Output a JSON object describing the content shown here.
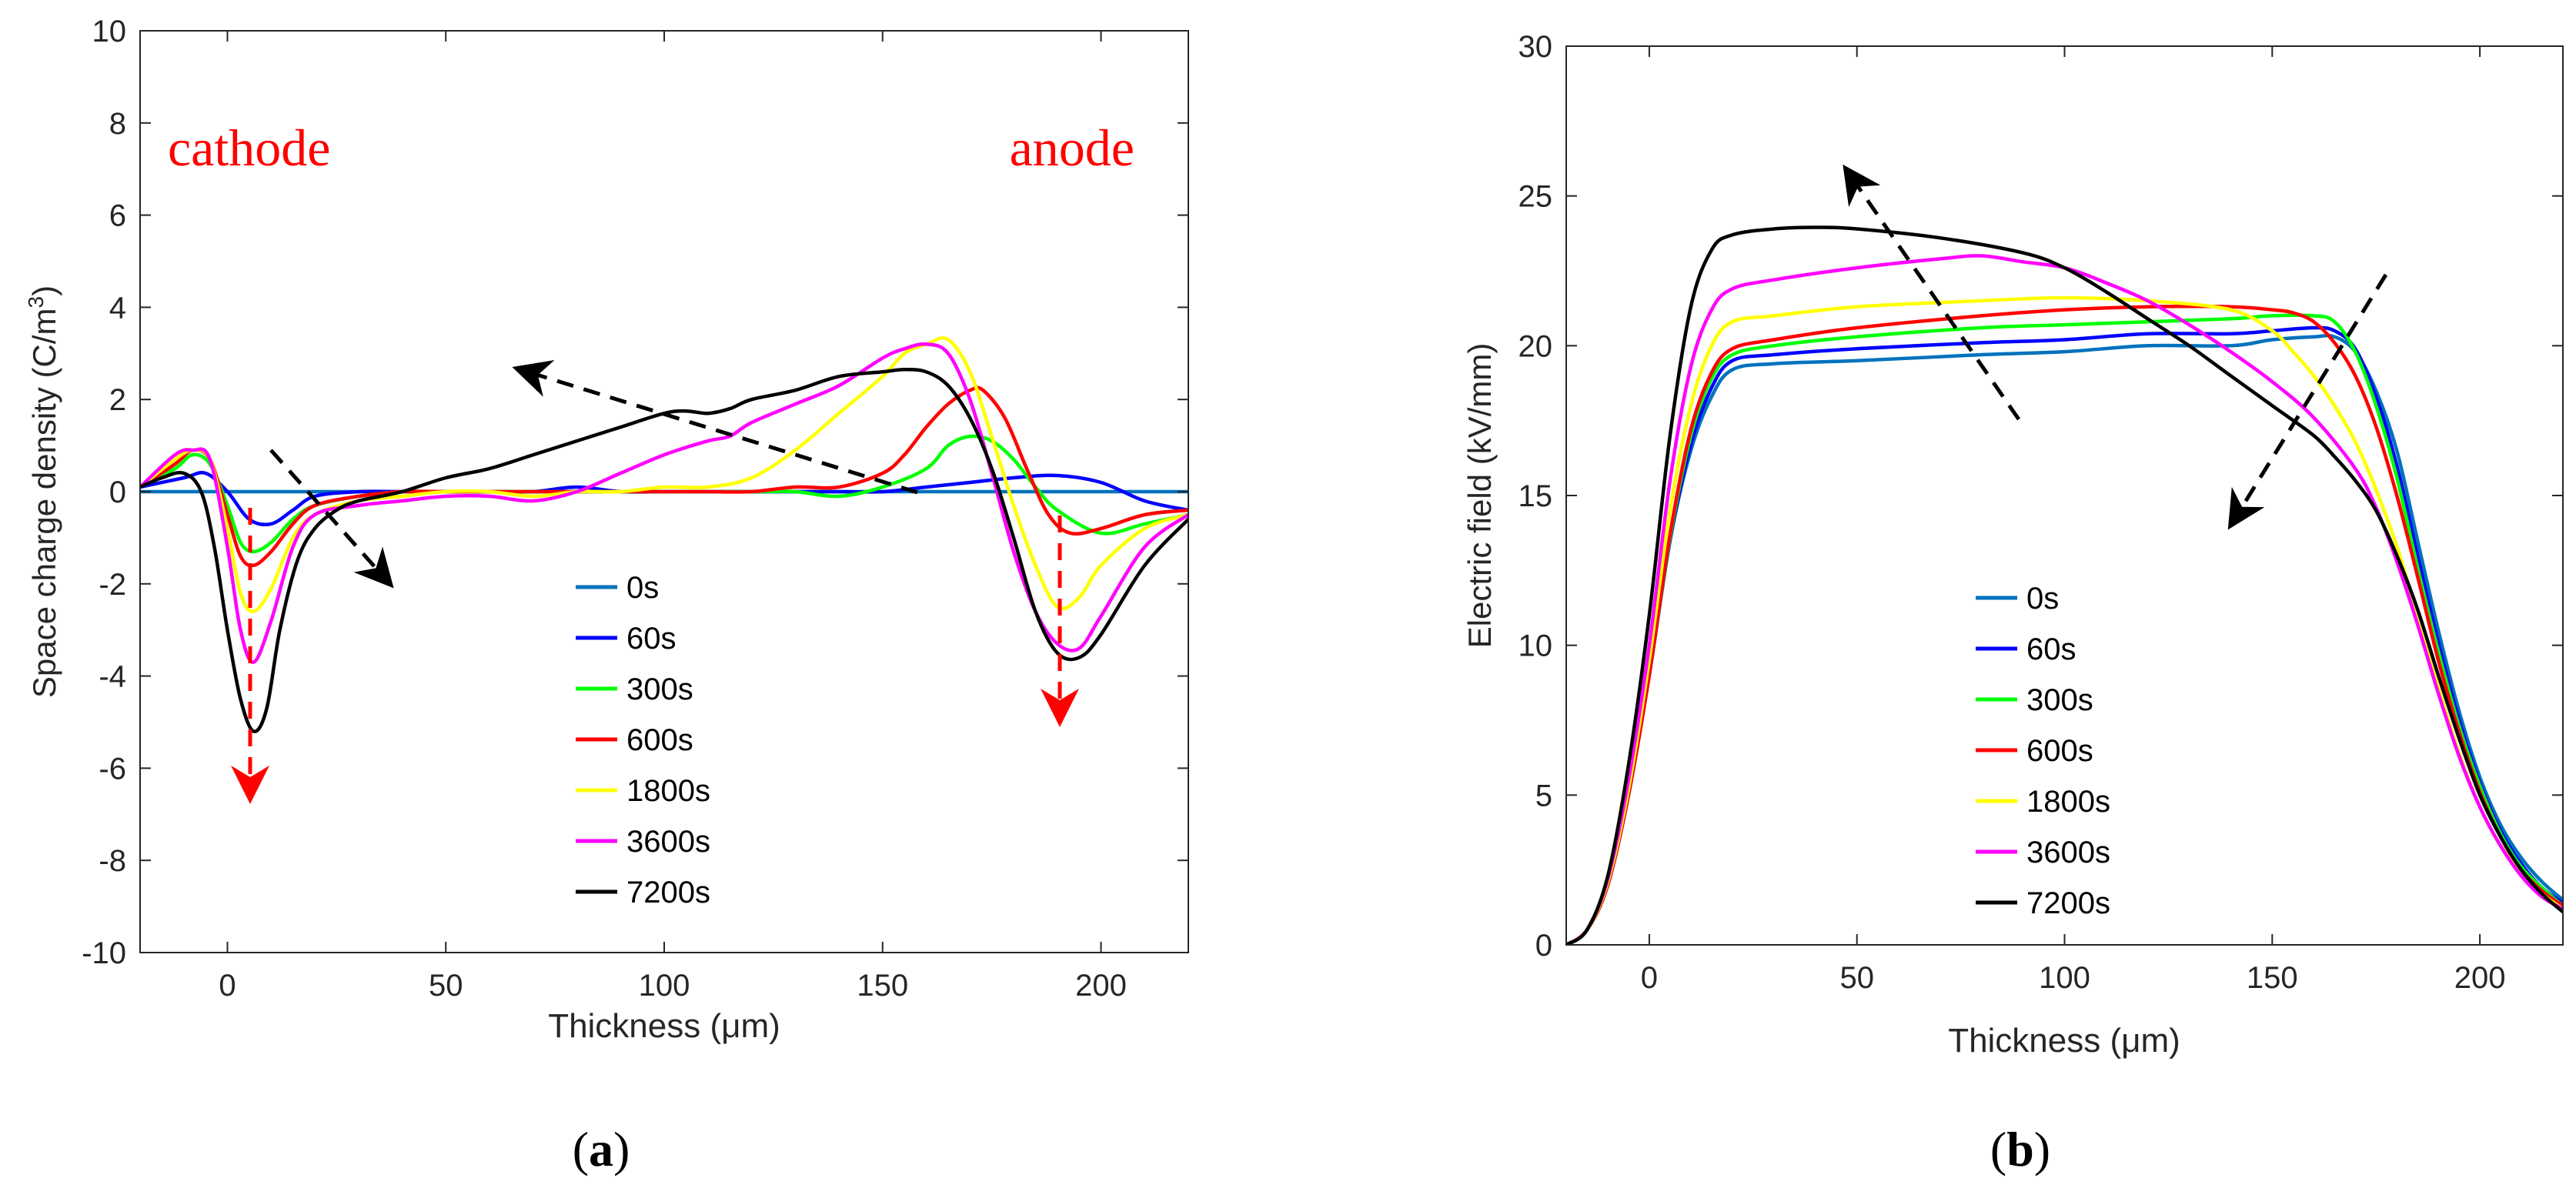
{
  "chart_data": [
    {
      "id": "a",
      "type": "line",
      "panel_label": "(a)",
      "panel_letter": "a",
      "title": "",
      "xlabel": "Thickness (μm)",
      "ylabel_main": "Space charge density (C/m",
      "ylabel_sup": "3",
      "ylabel_end": ")",
      "xlim": [
        -20,
        220
      ],
      "ylim": [
        -10,
        10
      ],
      "xticks": [
        0,
        50,
        100,
        150,
        200
      ],
      "yticks": [
        -10,
        -8,
        -6,
        -4,
        -2,
        0,
        2,
        4,
        6,
        8,
        10
      ],
      "grid": false,
      "legend_position": "lower-center",
      "annotations": {
        "cathode": "cathode",
        "anode": "anode",
        "red_color": "#ff0000",
        "arrow_color": "#000000"
      },
      "series": [
        {
          "name": "0s",
          "color": "#0072BD",
          "x": [
            -20,
            220
          ],
          "y": [
            0,
            0
          ]
        },
        {
          "name": "60s",
          "color": "#0000FF",
          "x": [
            -20,
            -10,
            -5,
            0,
            5,
            10,
            15,
            20,
            30,
            40,
            50,
            60,
            70,
            80,
            90,
            100,
            110,
            120,
            130,
            140,
            150,
            160,
            170,
            180,
            190,
            200,
            210,
            220
          ],
          "y": [
            0.1,
            0.3,
            0.4,
            0,
            -0.6,
            -0.7,
            -0.4,
            -0.1,
            0,
            0,
            0,
            0,
            0,
            0.1,
            0,
            0,
            0,
            0,
            0,
            0,
            0,
            0.1,
            0.2,
            0.3,
            0.35,
            0.2,
            -0.2,
            -0.4
          ]
        },
        {
          "name": "300s",
          "color": "#00FF00",
          "x": [
            -20,
            -12,
            -8,
            -4,
            0,
            3,
            6,
            10,
            15,
            20,
            30,
            40,
            50,
            60,
            70,
            80,
            90,
            100,
            110,
            120,
            130,
            140,
            150,
            160,
            165,
            170,
            175,
            180,
            185,
            190,
            200,
            210,
            220
          ],
          "y": [
            0.1,
            0.5,
            0.8,
            0.6,
            -0.3,
            -1.1,
            -1.3,
            -1.1,
            -0.6,
            -0.3,
            -0.1,
            0,
            0,
            0,
            0,
            0,
            0,
            0,
            0,
            0,
            0,
            -0.1,
            0.1,
            0.5,
            1.0,
            1.2,
            1.1,
            0.7,
            0.1,
            -0.4,
            -0.9,
            -0.7,
            -0.5
          ]
        },
        {
          "name": "600s",
          "color": "#FF0000",
          "x": [
            -20,
            -12,
            -8,
            -4,
            0,
            3,
            6,
            10,
            15,
            20,
            30,
            40,
            50,
            60,
            70,
            80,
            90,
            100,
            110,
            120,
            130,
            140,
            150,
            155,
            160,
            165,
            170,
            173,
            178,
            183,
            188,
            193,
            200,
            210,
            220
          ],
          "y": [
            0.1,
            0.6,
            0.9,
            0.7,
            -0.5,
            -1.4,
            -1.6,
            -1.3,
            -0.7,
            -0.3,
            -0.1,
            0,
            0,
            0,
            0,
            0,
            0,
            0,
            0,
            0,
            0.1,
            0.1,
            0.4,
            0.8,
            1.4,
            1.9,
            2.2,
            2.2,
            1.6,
            0.5,
            -0.5,
            -0.9,
            -0.8,
            -0.5,
            -0.4
          ]
        },
        {
          "name": "1800s",
          "color": "#FFFF00",
          "x": [
            -20,
            -12,
            -8,
            -4,
            0,
            3,
            6,
            10,
            15,
            20,
            30,
            40,
            50,
            60,
            70,
            80,
            90,
            100,
            110,
            120,
            130,
            140,
            150,
            155,
            160,
            165,
            170,
            175,
            180,
            185,
            190,
            195,
            200,
            210,
            220
          ],
          "y": [
            0.1,
            0.7,
            0.9,
            0.7,
            -0.8,
            -2.2,
            -2.6,
            -2.1,
            -1.0,
            -0.5,
            -0.2,
            -0.1,
            0,
            0,
            -0.1,
            0,
            0,
            0.1,
            0.1,
            0.3,
            0.9,
            1.7,
            2.5,
            3.0,
            3.2,
            3.3,
            2.6,
            1.2,
            -0.3,
            -1.6,
            -2.5,
            -2.3,
            -1.6,
            -0.8,
            -0.5
          ]
        },
        {
          "name": "3600s",
          "color": "#FF00FF",
          "x": [
            -20,
            -12,
            -8,
            -4,
            0,
            3,
            6,
            10,
            15,
            20,
            30,
            40,
            50,
            60,
            70,
            80,
            90,
            100,
            110,
            115,
            120,
            130,
            140,
            150,
            155,
            160,
            165,
            170,
            175,
            180,
            185,
            190,
            195,
            200,
            210,
            220
          ],
          "y": [
            0.1,
            0.8,
            0.9,
            0.7,
            -1.2,
            -3.0,
            -3.7,
            -2.8,
            -1.2,
            -0.5,
            -0.3,
            -0.2,
            -0.1,
            -0.1,
            -0.2,
            0,
            0.4,
            0.8,
            1.1,
            1.2,
            1.5,
            1.9,
            2.3,
            2.9,
            3.1,
            3.2,
            3.0,
            2.0,
            0.4,
            -1.3,
            -2.6,
            -3.3,
            -3.4,
            -2.7,
            -1.2,
            -0.5
          ]
        },
        {
          "name": "7200s",
          "color": "#000000",
          "x": [
            -20,
            -15,
            -10,
            -6,
            -3,
            0,
            3,
            6,
            9,
            12,
            16,
            20,
            25,
            30,
            40,
            50,
            60,
            70,
            80,
            90,
            100,
            105,
            110,
            115,
            120,
            130,
            140,
            150,
            155,
            160,
            165,
            170,
            175,
            180,
            185,
            190,
            195,
            200,
            210,
            220
          ],
          "y": [
            0.1,
            0.3,
            0.4,
            0,
            -1.2,
            -3.0,
            -4.5,
            -5.2,
            -4.7,
            -3.0,
            -1.5,
            -0.8,
            -0.4,
            -0.2,
            0,
            0.3,
            0.5,
            0.8,
            1.1,
            1.4,
            1.7,
            1.75,
            1.7,
            1.8,
            2.0,
            2.2,
            2.5,
            2.6,
            2.65,
            2.6,
            2.3,
            1.6,
            0.5,
            -1.0,
            -2.6,
            -3.5,
            -3.6,
            -3.1,
            -1.6,
            -0.6
          ]
        }
      ]
    },
    {
      "id": "b",
      "type": "line",
      "panel_label": "(b)",
      "panel_letter": "b",
      "title": "",
      "xlabel": "Thickness (μm)",
      "ylabel": "Electric field (kV/mm)",
      "xlim": [
        -20,
        220
      ],
      "ylim": [
        0,
        30
      ],
      "xticks": [
        0,
        50,
        100,
        150,
        200
      ],
      "yticks": [
        0,
        5,
        10,
        15,
        20,
        25,
        30
      ],
      "grid": false,
      "legend_position": "lower-center",
      "series": [
        {
          "name": "0s",
          "color": "#0072BD",
          "x": [
            -20,
            -15,
            -10,
            -5,
            0,
            5,
            10,
            15,
            20,
            30,
            50,
            80,
            100,
            120,
            140,
            150,
            160,
            165,
            170,
            175,
            180,
            185,
            190,
            195,
            200,
            205,
            210,
            215,
            220
          ],
          "y": [
            0,
            0.5,
            2,
            5,
            9,
            13.5,
            16.5,
            18.3,
            19.2,
            19.4,
            19.5,
            19.7,
            19.8,
            20,
            20,
            20.2,
            20.3,
            20.3,
            19.8,
            18.5,
            16.5,
            13.5,
            10.5,
            7.8,
            5.6,
            4,
            2.9,
            2.1,
            1.5
          ]
        },
        {
          "name": "60s",
          "color": "#0000FF",
          "x": [
            -20,
            -15,
            -10,
            -5,
            0,
            5,
            10,
            15,
            20,
            30,
            50,
            80,
            100,
            120,
            140,
            150,
            160,
            165,
            170,
            175,
            180,
            185,
            190,
            195,
            200,
            205,
            210,
            215,
            220
          ],
          "y": [
            0,
            0.5,
            2,
            5,
            9,
            13.5,
            16.7,
            18.6,
            19.5,
            19.7,
            19.9,
            20.1,
            20.2,
            20.4,
            20.4,
            20.5,
            20.6,
            20.5,
            19.9,
            18.3,
            16,
            13,
            10.1,
            7.5,
            5.4,
            3.8,
            2.7,
            1.9,
            1.4
          ]
        },
        {
          "name": "300s",
          "color": "#00FF00",
          "x": [
            -20,
            -15,
            -10,
            -5,
            0,
            5,
            10,
            15,
            20,
            30,
            50,
            80,
            100,
            120,
            140,
            150,
            160,
            165,
            170,
            175,
            180,
            185,
            190,
            195,
            200,
            205,
            210,
            215,
            220
          ],
          "y": [
            0,
            0.5,
            2,
            5,
            9,
            13.6,
            17,
            18.9,
            19.7,
            20,
            20.3,
            20.6,
            20.7,
            20.8,
            20.9,
            21,
            21,
            20.8,
            19.8,
            18,
            15.6,
            12.6,
            9.8,
            7.3,
            5.3,
            3.7,
            2.6,
            1.9,
            1.3
          ]
        },
        {
          "name": "600s",
          "color": "#FF0000",
          "x": [
            -20,
            -15,
            -10,
            -5,
            0,
            5,
            10,
            15,
            20,
            30,
            50,
            80,
            100,
            120,
            140,
            150,
            155,
            160,
            165,
            170,
            175,
            180,
            185,
            190,
            195,
            200,
            205,
            210,
            215,
            220
          ],
          "y": [
            0,
            0.5,
            2,
            5,
            9,
            13.7,
            17.2,
            19.1,
            19.9,
            20.2,
            20.6,
            21,
            21.2,
            21.3,
            21.3,
            21.2,
            21.1,
            20.8,
            20.1,
            19,
            17.3,
            15,
            12.3,
            9.5,
            7.1,
            5.1,
            3.6,
            2.5,
            1.8,
            1.3
          ]
        },
        {
          "name": "1800s",
          "color": "#FFFF00",
          "x": [
            -20,
            -15,
            -10,
            -5,
            0,
            5,
            10,
            15,
            20,
            30,
            50,
            80,
            100,
            120,
            140,
            150,
            155,
            160,
            165,
            170,
            175,
            180,
            185,
            190,
            195,
            200,
            205,
            210,
            215,
            220
          ],
          "y": [
            0,
            0.5,
            2.1,
            5.2,
            9.5,
            14.5,
            18,
            20,
            20.8,
            21,
            21.3,
            21.5,
            21.6,
            21.5,
            21.2,
            20.5,
            19.8,
            19,
            18,
            16.8,
            15.2,
            13.3,
            11,
            8.6,
            6.4,
            4.6,
            3.3,
            2.4,
            1.7,
            1.2
          ]
        },
        {
          "name": "3600s",
          "color": "#FF00FF",
          "x": [
            -20,
            -15,
            -10,
            -5,
            0,
            5,
            10,
            15,
            20,
            30,
            50,
            70,
            80,
            90,
            100,
            110,
            120,
            130,
            140,
            150,
            160,
            170,
            175,
            180,
            185,
            190,
            195,
            200,
            205,
            210,
            215,
            220
          ],
          "y": [
            0,
            0.5,
            2.2,
            5.5,
            10,
            15.5,
            19.3,
            21.2,
            21.9,
            22.2,
            22.6,
            22.9,
            23,
            22.8,
            22.6,
            22.1,
            21.5,
            20.7,
            19.8,
            18.8,
            17.6,
            15.9,
            14.6,
            12.8,
            10.7,
            8.4,
            6.3,
            4.6,
            3.3,
            2.3,
            1.6,
            1.2
          ]
        },
        {
          "name": "7200s",
          "color": "#000000",
          "x": [
            -20,
            -15,
            -10,
            -5,
            0,
            5,
            10,
            15,
            20,
            30,
            40,
            50,
            70,
            90,
            100,
            110,
            120,
            130,
            140,
            150,
            160,
            165,
            170,
            175,
            180,
            185,
            190,
            195,
            200,
            205,
            210,
            215,
            220
          ],
          "y": [
            0,
            0.5,
            2.3,
            6,
            11,
            17,
            21.3,
            23.2,
            23.7,
            23.9,
            23.95,
            23.9,
            23.6,
            23.1,
            22.6,
            21.8,
            20.9,
            20,
            19,
            18,
            17,
            16.3,
            15.5,
            14.5,
            13,
            11.2,
            9,
            6.9,
            5,
            3.6,
            2.5,
            1.7,
            1.1
          ]
        }
      ]
    }
  ]
}
